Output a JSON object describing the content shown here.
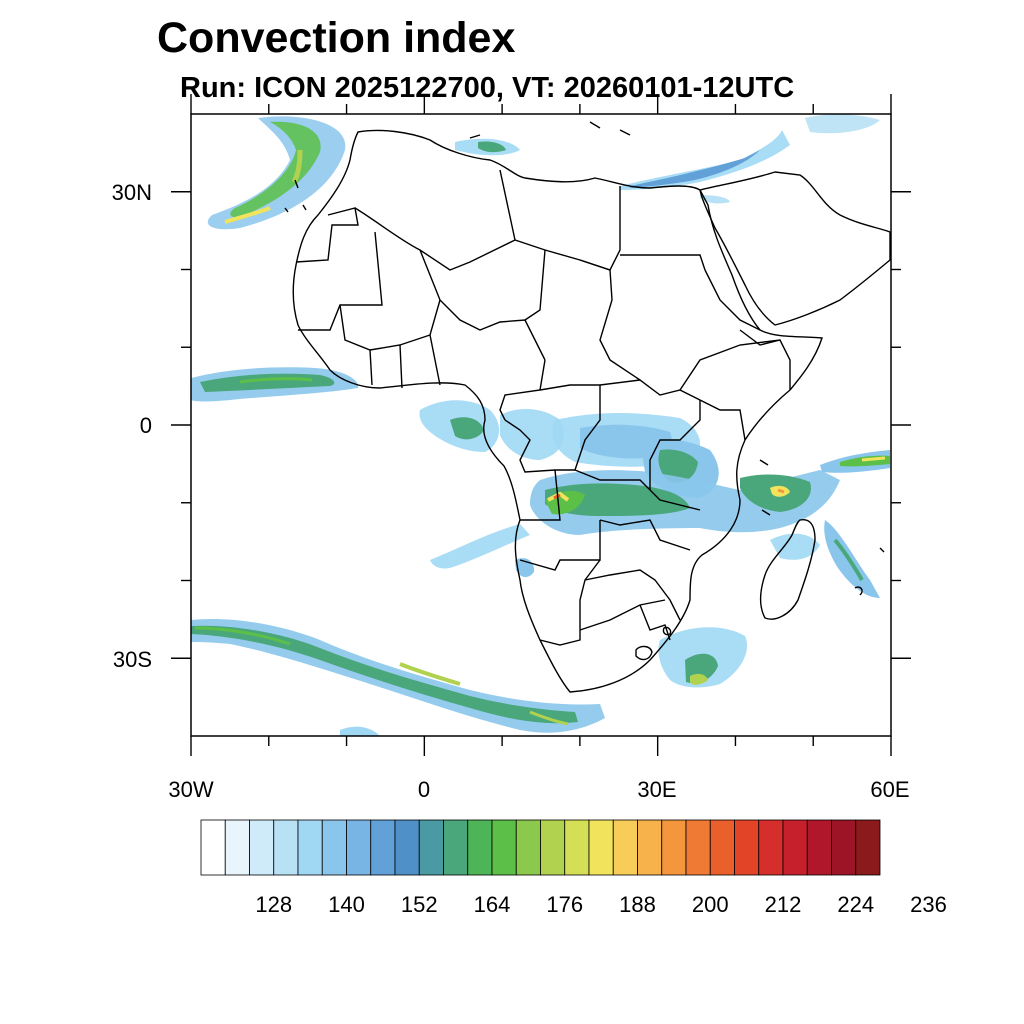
{
  "title": "Convection index",
  "subtitle": "Run: ICON 2025122700,  VT: 20260101-12UTC",
  "map": {
    "lon_range": [
      -30,
      60
    ],
    "lat_range": [
      -40,
      40
    ],
    "lat_tick_labels": [
      "30N",
      "0",
      "30S"
    ],
    "lon_tick_labels": [
      "30W",
      "0",
      "30E",
      "60E"
    ]
  },
  "colorbar": {
    "colors": [
      "#ffffff",
      "#e8f5fc",
      "#cfeaf8",
      "#b8e1f5",
      "#a0d8f4",
      "#8ac6ec",
      "#78b5e4",
      "#62a0d8",
      "#4f90c8",
      "#4a9aa4",
      "#4aa77c",
      "#4db457",
      "#5bbf48",
      "#8bc94c",
      "#b0d24e",
      "#d5df55",
      "#f1e45c",
      "#f7cc58",
      "#f7b24c",
      "#f4963e",
      "#ee7a33",
      "#e9602c",
      "#e24427",
      "#d62e2a",
      "#c5202b",
      "#b1172a",
      "#9c1426",
      "#8a1a1c"
    ],
    "labels": [
      "128",
      "140",
      "152",
      "164",
      "176",
      "188",
      "200",
      "212",
      "224",
      "236"
    ]
  }
}
